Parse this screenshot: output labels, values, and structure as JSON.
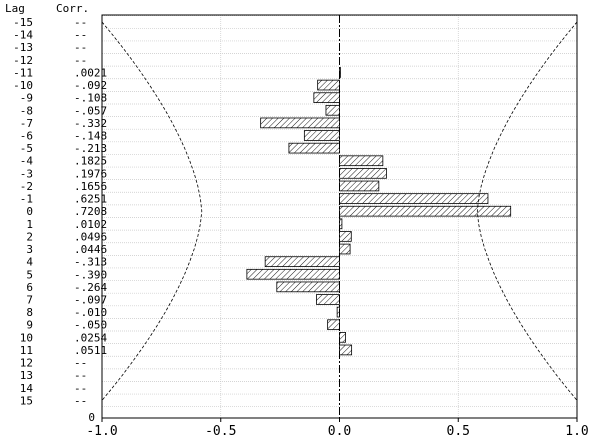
{
  "chart_data": {
    "type": "bar",
    "orientation": "horizontal",
    "col_headers": {
      "lag": "Lag",
      "corr": "Corr."
    },
    "rows": [
      {
        "lag": "-15",
        "corr": "--",
        "value": null
      },
      {
        "lag": "-14",
        "corr": "--",
        "value": null
      },
      {
        "lag": "-13",
        "corr": "--",
        "value": null
      },
      {
        "lag": "-12",
        "corr": "--",
        "value": null
      },
      {
        "lag": "-11",
        "corr": ".0021",
        "value": 0.0021
      },
      {
        "lag": "-10",
        "corr": "-.092",
        "value": -0.092
      },
      {
        "lag": "-9",
        "corr": "-.108",
        "value": -0.108
      },
      {
        "lag": "-8",
        "corr": "-.057",
        "value": -0.057
      },
      {
        "lag": "-7",
        "corr": "-.332",
        "value": -0.332
      },
      {
        "lag": "-6",
        "corr": "-.148",
        "value": -0.148
      },
      {
        "lag": "-5",
        "corr": "-.213",
        "value": -0.213
      },
      {
        "lag": "-4",
        "corr": ".1825",
        "value": 0.1825
      },
      {
        "lag": "-3",
        "corr": ".1976",
        "value": 0.1976
      },
      {
        "lag": "-2",
        "corr": ".1656",
        "value": 0.1656
      },
      {
        "lag": "-1",
        "corr": ".6251",
        "value": 0.6251
      },
      {
        "lag": "0",
        "corr": ".7208",
        "value": 0.7208
      },
      {
        "lag": "1",
        "corr": ".0102",
        "value": 0.0102
      },
      {
        "lag": "2",
        "corr": ".0496",
        "value": 0.0496
      },
      {
        "lag": "3",
        "corr": ".0446",
        "value": 0.0446
      },
      {
        "lag": "4",
        "corr": "-.313",
        "value": -0.313
      },
      {
        "lag": "5",
        "corr": "-.390",
        "value": -0.39
      },
      {
        "lag": "6",
        "corr": "-.264",
        "value": -0.264
      },
      {
        "lag": "7",
        "corr": "-.097",
        "value": -0.097
      },
      {
        "lag": "8",
        "corr": "-.010",
        "value": -0.01
      },
      {
        "lag": "9",
        "corr": "-.050",
        "value": -0.05
      },
      {
        "lag": "10",
        "corr": ".0254",
        "value": 0.0254
      },
      {
        "lag": "11",
        "corr": ".0511",
        "value": 0.0511
      },
      {
        "lag": "12",
        "corr": "--",
        "value": null
      },
      {
        "lag": "13",
        "corr": "--",
        "value": null
      },
      {
        "lag": "14",
        "corr": "--",
        "value": null
      },
      {
        "lag": "15",
        "corr": "--",
        "value": null
      }
    ],
    "baseline_label": "0",
    "xlim": [
      -1.0,
      1.0
    ],
    "xticks": [
      {
        "value": -1.0,
        "label": "-1.0"
      },
      {
        "value": -0.5,
        "label": "-0.5"
      },
      {
        "value": 0.0,
        "label": "0.0"
      },
      {
        "value": 0.5,
        "label": "0.5"
      },
      {
        "value": 1.0,
        "label": "1.0"
      }
    ],
    "confidence_limit": {
      "style": "dashed",
      "value_at_lag_0": 0.58,
      "value_at_lag_15": 1.0
    },
    "grid": true,
    "bar_fill": "hatched",
    "colors": {
      "bar_stroke": "#000000",
      "hatch": "#000000",
      "grid": "#c8c8c8",
      "frame": "#000000"
    }
  }
}
